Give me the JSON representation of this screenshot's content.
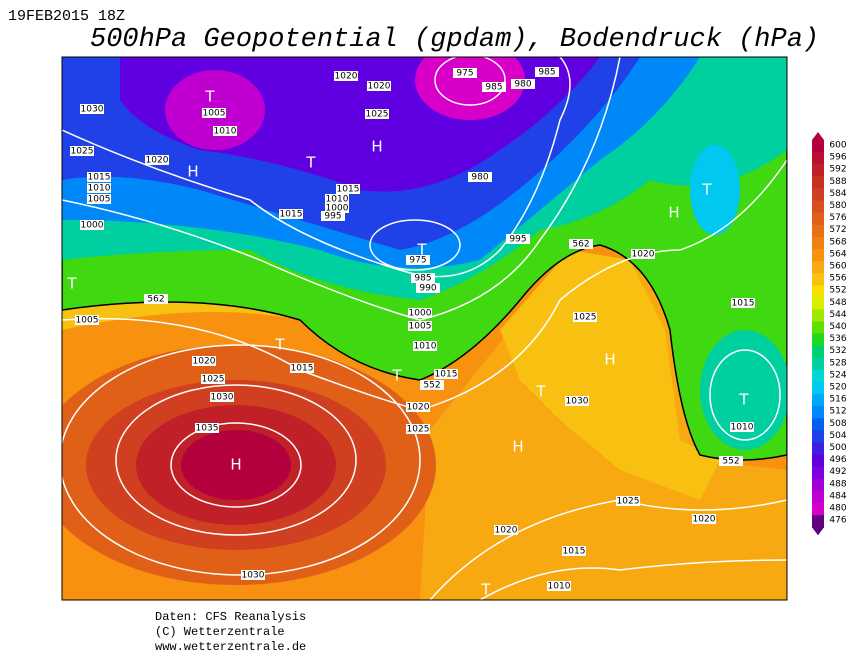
{
  "header": {
    "date": "19FEB2015 18Z",
    "title": "500hPa Geopotential (gpdam), Bodendruck (hPa)"
  },
  "colorbar": {
    "labels": [
      600,
      596,
      592,
      588,
      584,
      580,
      576,
      572,
      568,
      564,
      560,
      556,
      552,
      548,
      544,
      540,
      536,
      532,
      528,
      524,
      520,
      516,
      512,
      508,
      504,
      500,
      496,
      492,
      488,
      484,
      480,
      476
    ],
    "colors": [
      "#b4003c",
      "#b81030",
      "#c02028",
      "#c83020",
      "#d04020",
      "#d85020",
      "#e06018",
      "#e87018",
      "#f08010",
      "#f89010",
      "#f8a810",
      "#f8c010",
      "#f8e000",
      "#d8f000",
      "#a0e800",
      "#60e000",
      "#20d820",
      "#00d070",
      "#00d0a0",
      "#00d8d0",
      "#00c8f0",
      "#00a8f8",
      "#0088f8",
      "#0060f0",
      "#2040e8",
      "#4020e0",
      "#6000e0",
      "#8000e0",
      "#a000d8",
      "#c000d0",
      "#d800c8",
      "#600080"
    ]
  },
  "isobar_labels": [
    1020,
    1020,
    975,
    985,
    985,
    980,
    1030,
    1005,
    1025,
    1010,
    1025,
    1020,
    1015,
    1010,
    1005,
    1015,
    1010,
    1000,
    995,
    1015,
    980,
    1000,
    995,
    975,
    985,
    990,
    1020,
    562,
    1015,
    562,
    1005,
    1000,
    1005,
    1010,
    1025,
    1015,
    1020,
    1025,
    1030,
    1035,
    552,
    1015,
    1020,
    1025,
    1030,
    1010,
    552,
    1025,
    1020,
    1020,
    1015,
    1010,
    1030
  ],
  "pressure_centers": [
    "T",
    "H",
    "T",
    "H",
    "T",
    "T",
    "T",
    "T",
    "H",
    "T",
    "H",
    "T",
    "H",
    "T",
    "H",
    "T"
  ],
  "footer": [
    "Daten: CFS Reanalysis",
    "(C) Wetterzentrale",
    "www.wetterzentrale.de"
  ]
}
